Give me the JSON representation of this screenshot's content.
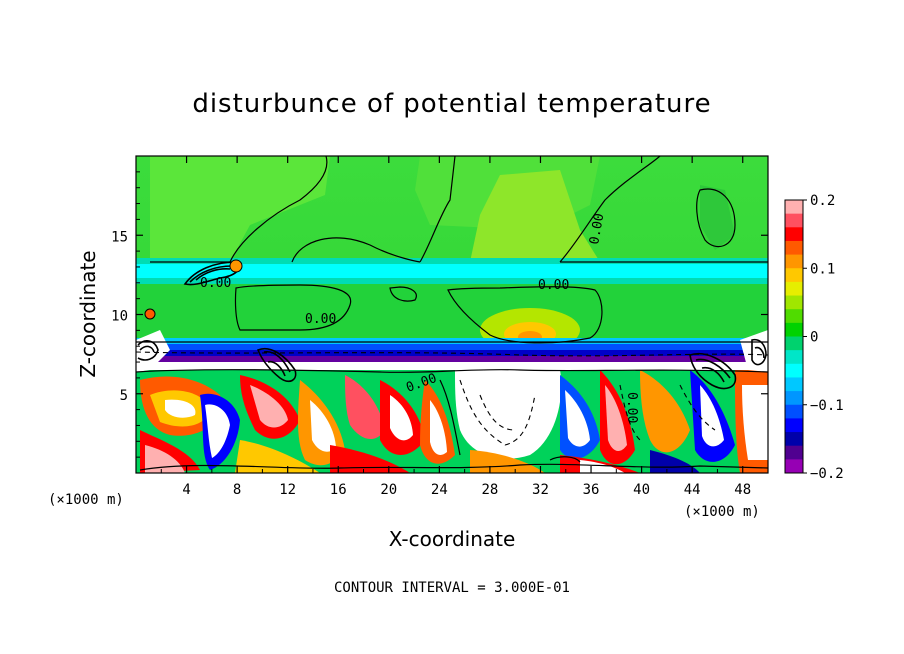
{
  "chart_data": {
    "type": "heatmap",
    "title": "disturbunce of potential temperature",
    "xlabel": "X-coordinate",
    "ylabel": "Z-coordinate",
    "x_unit": "(×1000 m)",
    "z_unit": "(×1000 m)",
    "xlim": [
      0,
      50
    ],
    "ylim": [
      0,
      20
    ],
    "x_ticks": [
      4,
      8,
      12,
      16,
      20,
      24,
      28,
      32,
      36,
      40,
      44,
      48
    ],
    "y_ticks": [
      5,
      10,
      15
    ],
    "colorbar": {
      "range": [
        -0.2,
        0.2
      ],
      "ticks": [
        "0.2",
        "0.1",
        "0",
        "−0.1",
        "−0.2"
      ],
      "colors": [
        "#ffb0b0",
        "#ff5060",
        "#ff0000",
        "#ff5a00",
        "#ff9600",
        "#ffc800",
        "#e6ee00",
        "#a0e600",
        "#50dc00",
        "#00d200",
        "#00d26e",
        "#00e6c8",
        "#00ffff",
        "#00c8ff",
        "#0096ff",
        "#0050ff",
        "#0000ff",
        "#0000aa",
        "#500090",
        "#9600b4"
      ]
    },
    "contour_labels": [
      "0.00",
      "0.00",
      "0.00",
      "0.00",
      "0.00",
      "0.00"
    ],
    "contour_interval": "CONTOUR INTERVAL = 3.000E-01"
  }
}
